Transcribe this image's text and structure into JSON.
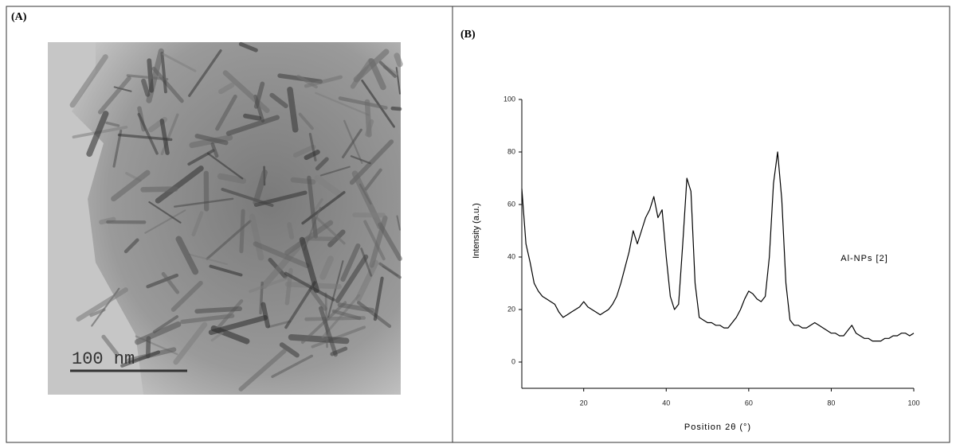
{
  "panels": [
    "(A)",
    "(B)"
  ],
  "scale_bar": "100 nm",
  "chart_data": {
    "type": "line",
    "x_label": "Position 2θ (°)",
    "y_label": "Intensity (a.u.)",
    "annotation": "Al-NPs [2]",
    "color": "#000000",
    "xlim": [
      5,
      100
    ],
    "ylim": [
      -10,
      100
    ],
    "xticks": [
      20,
      40,
      60,
      80,
      100
    ],
    "yticks": [
      0,
      20,
      40,
      60,
      80,
      100
    ],
    "x": [
      5,
      6,
      7,
      8,
      9,
      10,
      11,
      12,
      13,
      14,
      15,
      16,
      17,
      18,
      19,
      20,
      21,
      22,
      23,
      24,
      25,
      26,
      27,
      28,
      29,
      30,
      31,
      32,
      33,
      34,
      35,
      36,
      37,
      38,
      39,
      40,
      41,
      42,
      43,
      44,
      45,
      46,
      47,
      48,
      49,
      50,
      51,
      52,
      53,
      54,
      55,
      56,
      57,
      58,
      59,
      60,
      61,
      62,
      63,
      64,
      65,
      66,
      67,
      68,
      69,
      70,
      71,
      72,
      73,
      74,
      75,
      76,
      77,
      78,
      79,
      80,
      81,
      82,
      83,
      84,
      85,
      86,
      87,
      88,
      89,
      90,
      91,
      92,
      93,
      94,
      95,
      96,
      97,
      98,
      99,
      100
    ],
    "values": [
      66,
      45,
      38,
      30,
      27,
      25,
      24,
      23,
      22,
      19,
      17,
      18,
      19,
      20,
      21,
      23,
      21,
      20,
      19,
      18,
      19,
      20,
      22,
      25,
      30,
      36,
      42,
      50,
      45,
      50,
      55,
      58,
      63,
      55,
      58,
      40,
      25,
      20,
      22,
      45,
      70,
      65,
      30,
      17,
      16,
      15,
      15,
      14,
      14,
      13,
      13,
      15,
      17,
      20,
      24,
      27,
      26,
      24,
      23,
      25,
      40,
      68,
      80,
      62,
      30,
      16,
      14,
      14,
      13,
      13,
      14,
      15,
      14,
      13,
      12,
      11,
      11,
      10,
      10,
      12,
      14,
      11,
      10,
      9,
      9,
      8,
      8,
      8,
      9,
      9,
      10,
      10,
      11,
      11,
      10,
      11
    ]
  }
}
